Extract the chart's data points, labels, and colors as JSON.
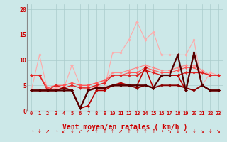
{
  "xlabel": "Vent moyen/en rafales ( km/h )",
  "x": [
    0,
    1,
    2,
    3,
    4,
    5,
    6,
    7,
    8,
    9,
    10,
    11,
    12,
    13,
    14,
    15,
    16,
    17,
    18,
    19,
    20,
    21,
    22,
    23
  ],
  "series": [
    {
      "color": "#ffaaaa",
      "linewidth": 0.8,
      "marker": "D",
      "markersize": 2.0,
      "y": [
        4,
        11,
        4,
        4.5,
        4.5,
        9,
        5,
        4,
        5,
        4.5,
        11.5,
        11.5,
        14,
        17.5,
        14,
        15.5,
        11,
        11,
        11,
        11,
        14,
        5,
        7.5,
        7
      ]
    },
    {
      "color": "#ff8888",
      "linewidth": 0.8,
      "marker": "D",
      "markersize": 2.0,
      "y": [
        7,
        7,
        4.5,
        5,
        5,
        5.5,
        5,
        5,
        5.5,
        6,
        7.5,
        7.5,
        8,
        8.5,
        9,
        8.5,
        8,
        8,
        8.5,
        9,
        9,
        8,
        7,
        7
      ]
    },
    {
      "color": "#ff5555",
      "linewidth": 0.8,
      "marker": "D",
      "markersize": 2.0,
      "y": [
        7,
        7,
        4.5,
        5,
        5,
        5.5,
        5,
        5,
        5.5,
        6,
        7,
        7,
        7.5,
        7.5,
        8.5,
        8,
        7.5,
        7.5,
        8,
        8.5,
        8.5,
        7.5,
        7,
        7
      ]
    },
    {
      "color": "#dd2222",
      "linewidth": 1.0,
      "marker": "D",
      "markersize": 2.0,
      "y": [
        7,
        7,
        4,
        5,
        4.5,
        5,
        4.5,
        4.5,
        5,
        5.5,
        7,
        7,
        7,
        7,
        8,
        7.5,
        7,
        7,
        7,
        7.5,
        7.5,
        7.5,
        7,
        7
      ]
    },
    {
      "color": "#bb0000",
      "linewidth": 1.2,
      "marker": "D",
      "markersize": 2.0,
      "y": [
        4,
        4,
        4,
        4,
        4.5,
        4,
        0.5,
        1,
        4,
        4,
        5,
        5.5,
        5,
        5,
        8.5,
        4.5,
        7,
        7,
        7,
        4,
        11.5,
        5,
        4,
        4
      ]
    },
    {
      "color": "#880000",
      "linewidth": 1.4,
      "marker": "D",
      "markersize": 2.0,
      "y": [
        4,
        4,
        4,
        4,
        4.5,
        4,
        0.5,
        4,
        4.5,
        4.5,
        5,
        5,
        5,
        4.5,
        5,
        4.5,
        5,
        5,
        5,
        4.5,
        4,
        5,
        4,
        4
      ]
    },
    {
      "color": "#550000",
      "linewidth": 1.6,
      "marker": "D",
      "markersize": 2.0,
      "y": [
        4,
        4,
        4,
        4,
        4,
        4,
        0.5,
        4,
        4.5,
        4.5,
        5,
        5,
        5,
        5,
        5,
        4.5,
        7,
        7,
        11,
        4,
        11.5,
        5,
        4,
        4
      ]
    }
  ],
  "ylim": [
    0,
    21
  ],
  "yticks": [
    0,
    5,
    10,
    15,
    20
  ],
  "background_color": "#cce8e8",
  "grid_color": "#aacccc",
  "tick_color": "#cc0000",
  "label_color": "#cc0000",
  "arrow_symbols": [
    "→",
    "↓",
    "↗",
    "→",
    "↙",
    "↓",
    "↙",
    "↗",
    "↑",
    "↑",
    "↑",
    "↗",
    "↑",
    "↑",
    "↑",
    "↑",
    "→",
    "↘",
    "↓",
    "↘",
    "↓",
    "↘",
    "↓",
    "↘"
  ]
}
